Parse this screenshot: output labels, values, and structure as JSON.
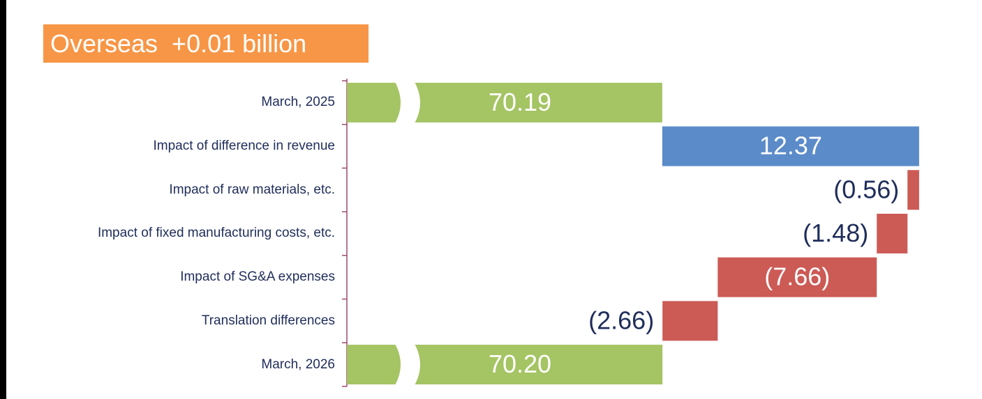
{
  "chart_data": {
    "type": "waterfall",
    "title": "Overseas  +0.01 billion",
    "categories": [
      "March, 2025",
      "Impact of difference in revenue",
      "Impact of raw materials, etc.",
      "Impact of fixed manufacturing costs, etc.",
      "Impact of SG&A expenses",
      "Translation differences",
      "March, 2026"
    ],
    "measure": [
      "absolute",
      "relative",
      "relative",
      "relative",
      "relative",
      "relative",
      "absolute"
    ],
    "values": [
      70.19,
      12.37,
      -0.56,
      -1.48,
      -7.66,
      -2.66,
      70.2
    ],
    "value_labels": [
      "70.19",
      "12.37",
      "(0.56)",
      "(1.48)",
      "(7.66)",
      "(2.66)",
      "70.20"
    ],
    "colors": {
      "absolute": "#a5c464",
      "increase": "#5b8bc9",
      "decrease": "#cc5a55"
    },
    "xlim": [
      55,
      83
    ]
  }
}
